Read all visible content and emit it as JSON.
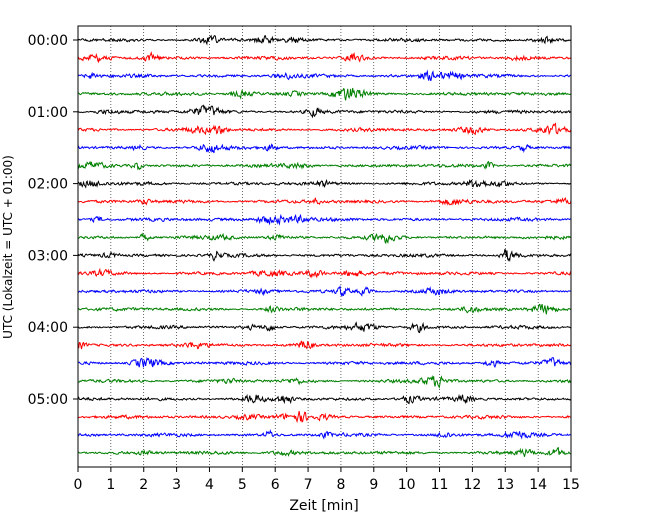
{
  "chart_data": {
    "type": "line",
    "title": "",
    "xlabel": "Zeit  [min]",
    "ylabel": "UTC (Lokalzeit = UTC + 01:00)",
    "xlim": [
      0,
      15
    ],
    "xticks": [
      0,
      1,
      2,
      3,
      4,
      5,
      6,
      7,
      8,
      9,
      10,
      11,
      12,
      13,
      14,
      15
    ],
    "xtick_labels": [
      "0",
      "1",
      "2",
      "3",
      "4",
      "5",
      "6",
      "7",
      "8",
      "9",
      "10",
      "11",
      "12",
      "13",
      "14",
      "15"
    ],
    "ytick_labels": [
      "00:00",
      "01:00",
      "02:00",
      "03:00",
      "04:00",
      "05:00"
    ],
    "row_minutes": 15,
    "row_count": 24,
    "row_colors": [
      "#000000",
      "#ff0000",
      "#0000ff",
      "#008000"
    ],
    "grid": "vertical dotted lines at each minute",
    "description_kind": "helicorder (seismogram drum) — 24 stacked 15-minute traces, 00:00–06:00 UTC"
  }
}
